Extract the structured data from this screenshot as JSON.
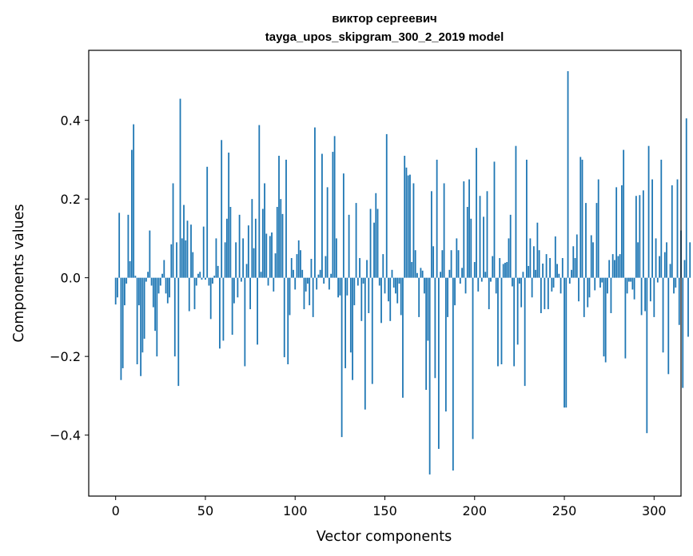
{
  "chart_data": {
    "type": "bar",
    "title_line1": "виктор сергеевич",
    "title_line2": "tayga_upos_skipgram_300_2_2019 model",
    "xlabel": "Vector components",
    "ylabel": "Components values",
    "xlim": [
      -15,
      315
    ],
    "ylim": [
      -0.555,
      0.578
    ],
    "xticks": [
      0,
      50,
      100,
      150,
      200,
      250,
      300
    ],
    "yticks": [
      -0.4,
      -0.2,
      0.0,
      0.2,
      0.4
    ],
    "ytick_labels": [
      "−0.4",
      "−0.2",
      "0.0",
      "0.2",
      "0.4"
    ],
    "color": "#1f77b4",
    "values": [
      -0.068,
      -0.05,
      0.165,
      -0.26,
      -0.23,
      -0.07,
      -0.015,
      0.16,
      0.042,
      0.325,
      0.39,
      0.005,
      -0.22,
      -0.07,
      -0.25,
      -0.19,
      -0.155,
      -0.01,
      0.015,
      0.12,
      -0.02,
      -0.075,
      -0.135,
      -0.2,
      -0.04,
      -0.02,
      0.01,
      0.045,
      -0.04,
      -0.065,
      -0.05,
      0.085,
      0.24,
      -0.2,
      0.09,
      -0.275,
      0.455,
      0.1,
      0.185,
      0.095,
      0.145,
      -0.085,
      0.135,
      0.065,
      -0.08,
      -0.02,
      0.01,
      0.015,
      -0.005,
      0.13,
      -0.005,
      0.282,
      -0.02,
      -0.105,
      -0.015,
      0.005,
      0.1,
      0.03,
      -0.18,
      0.35,
      -0.16,
      0.09,
      0.15,
      0.318,
      0.18,
      -0.145,
      -0.065,
      0.09,
      -0.05,
      0.16,
      -0.01,
      0.1,
      -0.225,
      0.035,
      0.133,
      -0.08,
      0.2,
      0.075,
      0.15,
      -0.17,
      0.388,
      0.015,
      0.175,
      0.24,
      0.112,
      -0.02,
      0.106,
      0.115,
      -0.035,
      0.062,
      0.18,
      0.31,
      0.2,
      0.162,
      -0.202,
      0.3,
      -0.22,
      -0.095,
      0.05,
      0.02,
      -0.03,
      0.06,
      0.095,
      0.07,
      0.02,
      -0.08,
      -0.035,
      -0.015,
      -0.07,
      0.048,
      -0.1,
      0.382,
      -0.03,
      0.008,
      0.02,
      0.315,
      -0.015,
      0.055,
      0.23,
      -0.03,
      0.01,
      0.32,
      0.36,
      0.1,
      -0.05,
      -0.045,
      -0.405,
      0.265,
      -0.23,
      -0.045,
      0.16,
      -0.19,
      -0.26,
      -0.07,
      0.19,
      -0.02,
      0.05,
      -0.11,
      -0.015,
      -0.335,
      0.045,
      -0.09,
      0.175,
      -0.27,
      0.14,
      0.215,
      0.175,
      -0.02,
      -0.115,
      0.06,
      -0.04,
      0.365,
      -0.06,
      -0.11,
      0.02,
      -0.025,
      -0.04,
      -0.065,
      -0.015,
      -0.095,
      -0.305,
      0.31,
      0.28,
      0.26,
      0.262,
      0.04,
      0.24,
      0.07,
      0.012,
      -0.1,
      0.025,
      0.018,
      -0.04,
      -0.285,
      -0.16,
      -0.5,
      0.22,
      0.08,
      -0.255,
      0.3,
      -0.435,
      0.015,
      0.07,
      0.24,
      -0.34,
      -0.1,
      0.02,
      0.07,
      -0.49,
      -0.07,
      0.1,
      0.07,
      -0.015,
      0.025,
      0.245,
      -0.04,
      0.18,
      0.25,
      0.15,
      -0.41,
      0.04,
      0.33,
      -0.035,
      0.208,
      -0.01,
      0.155,
      0.015,
      0.22,
      -0.08,
      -0.01,
      0.055,
      0.295,
      -0.04,
      -0.225,
      0.05,
      -0.22,
      0.035,
      0.038,
      0.04,
      0.1,
      0.16,
      -0.022,
      -0.225,
      0.335,
      -0.17,
      -0.015,
      -0.075,
      0.015,
      -0.275,
      0.3,
      0.03,
      0.1,
      -0.05,
      0.08,
      0.02,
      0.14,
      0.07,
      -0.09,
      0.036,
      -0.08,
      0.06,
      -0.08,
      0.05,
      -0.035,
      -0.025,
      0.105,
      0.035,
      0.01,
      -0.04,
      0.05,
      -0.33,
      -0.33,
      0.525,
      -0.015,
      0.02,
      0.08,
      0.05,
      0.11,
      -0.06,
      0.307,
      0.3,
      -0.1,
      0.19,
      -0.075,
      -0.05,
      0.108,
      0.09,
      -0.032,
      0.19,
      0.25,
      -0.025,
      -0.012,
      -0.2,
      -0.215,
      -0.04,
      0.045,
      -0.09,
      0.06,
      0.045,
      0.23,
      0.055,
      0.06,
      0.235,
      0.325,
      -0.205,
      -0.04,
      -0.01,
      -0.01,
      -0.03,
      -0.055,
      0.208,
      0.09,
      0.21,
      -0.095,
      0.222,
      -0.085,
      -0.395,
      0.335,
      -0.06,
      0.25,
      -0.1,
      0.1,
      -0.012,
      0.055,
      0.3,
      -0.19,
      0.065,
      0.09,
      -0.245,
      0.035,
      0.235,
      -0.04,
      -0.025,
      0.25,
      -0.12,
      0.12,
      -0.28,
      0.045,
      0.405,
      -0.15,
      0.09
    ]
  }
}
